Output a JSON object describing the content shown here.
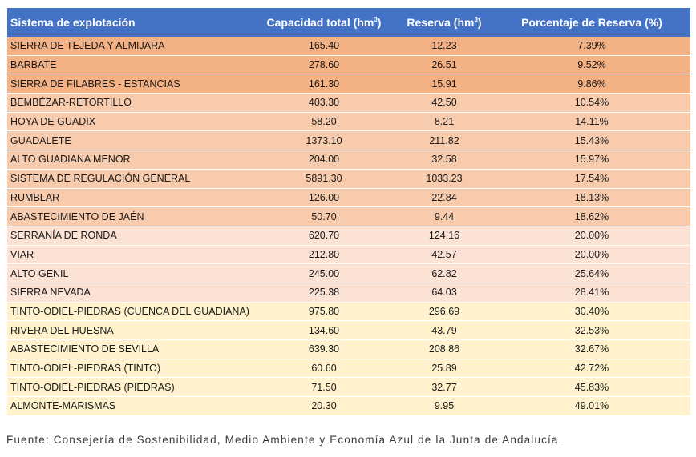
{
  "table": {
    "headers": {
      "system": "Sistema de explotación",
      "capacity_prefix": "Capacidad total (hm",
      "reserve_prefix": "Reserva (hm",
      "unit_exponent": "3",
      "unit_suffix": ")",
      "percentage": "Porcentaje de Reserva (%)"
    },
    "colors": {
      "header": "#4472c4",
      "band_dark": "#f4b183",
      "band_medium": "#f8cbad",
      "band_light": "#fbe2d5",
      "band_yellow": "#fff2cc"
    },
    "rows": [
      {
        "system": "SIERRA DE TEJEDA Y ALMIJARA",
        "capacity": "165.40",
        "reserve": "12.23",
        "percentage": "7.39%",
        "band": "band_dark"
      },
      {
        "system": "BARBATE",
        "capacity": "278.60",
        "reserve": "26.51",
        "percentage": "9.52%",
        "band": "band_dark"
      },
      {
        "system": "SIERRA DE FILABRES - ESTANCIAS",
        "capacity": "161.30",
        "reserve": "15.91",
        "percentage": "9.86%",
        "band": "band_dark"
      },
      {
        "system": "BEMBÉZAR-RETORTILLO",
        "capacity": "403.30",
        "reserve": "42.50",
        "percentage": "10.54%",
        "band": "band_medium"
      },
      {
        "system": "HOYA DE GUADIX",
        "capacity": "58.20",
        "reserve": "8.21",
        "percentage": "14.11%",
        "band": "band_medium"
      },
      {
        "system": "GUADALETE",
        "capacity": "1373.10",
        "reserve": "211.82",
        "percentage": "15.43%",
        "band": "band_medium"
      },
      {
        "system": "ALTO GUADIANA MENOR",
        "capacity": "204.00",
        "reserve": "32.58",
        "percentage": "15.97%",
        "band": "band_medium"
      },
      {
        "system": "SISTEMA DE REGULACIÓN GENERAL",
        "capacity": "5891.30",
        "reserve": "1033.23",
        "percentage": "17.54%",
        "band": "band_medium"
      },
      {
        "system": "RUMBLAR",
        "capacity": "126.00",
        "reserve": "22.84",
        "percentage": "18.13%",
        "band": "band_medium"
      },
      {
        "system": "ABASTECIMIENTO DE JAÉN",
        "capacity": "50.70",
        "reserve": "9.44",
        "percentage": "18.62%",
        "band": "band_medium"
      },
      {
        "system": "SERRANÍA DE RONDA",
        "capacity": "620.70",
        "reserve": "124.16",
        "percentage": "20.00%",
        "band": "band_light"
      },
      {
        "system": "VIAR",
        "capacity": "212.80",
        "reserve": "42.57",
        "percentage": "20.00%",
        "band": "band_light"
      },
      {
        "system": "ALTO GENIL",
        "capacity": "245.00",
        "reserve": "62.82",
        "percentage": "25.64%",
        "band": "band_light"
      },
      {
        "system": "SIERRA NEVADA",
        "capacity": "225.38",
        "reserve": "64.03",
        "percentage": "28.41%",
        "band": "band_light"
      },
      {
        "system": "TINTO-ODIEL-PIEDRAS (CUENCA DEL GUADIANA)",
        "capacity": "975.80",
        "reserve": "296.69",
        "percentage": "30.40%",
        "band": "band_yellow"
      },
      {
        "system": "RIVERA DEL HUESNA",
        "capacity": "134.60",
        "reserve": "43.79",
        "percentage": "32.53%",
        "band": "band_yellow"
      },
      {
        "system": "ABASTECIMIENTO DE SEVILLA",
        "capacity": "639.30",
        "reserve": "208.86",
        "percentage": "32.67%",
        "band": "band_yellow"
      },
      {
        "system": "TINTO-ODIEL-PIEDRAS (TINTO)",
        "capacity": "60.60",
        "reserve": "25.89",
        "percentage": "42.72%",
        "band": "band_yellow"
      },
      {
        "system": "TINTO-ODIEL-PIEDRAS (PIEDRAS)",
        "capacity": "71.50",
        "reserve": "32.77",
        "percentage": "45.83%",
        "band": "band_yellow"
      },
      {
        "system": "ALMONTE-MARISMAS",
        "capacity": "20.30",
        "reserve": "9.95",
        "percentage": "49.01%",
        "band": "band_yellow"
      }
    ]
  },
  "source": "Fuente: Consejería de Sostenibilidad, Medio Ambiente y Economía Azul de la Junta de Andalucía."
}
